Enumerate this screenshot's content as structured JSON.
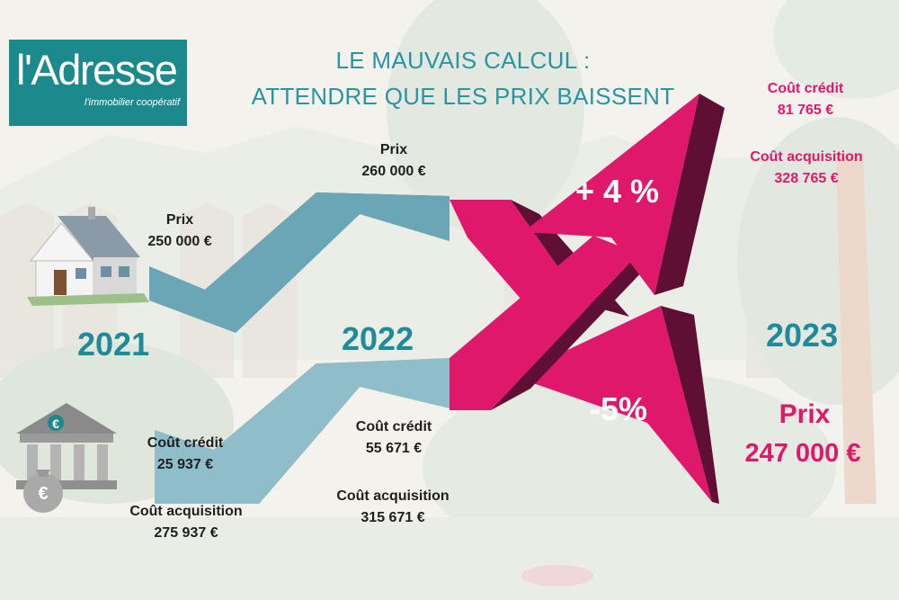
{
  "logo": {
    "brand": "l'Adresse",
    "tagline": "l'immobilier coopératif"
  },
  "title": {
    "line1": "LE MAUVAIS CALCUL :",
    "line2": "ATTENDRE QUE LES PRIX BAISSENT"
  },
  "years": {
    "y2021": "2021",
    "y2022": "2022",
    "y2023": "2023"
  },
  "y2021": {
    "price_label": "Prix",
    "price_value": "250 000 €",
    "credit_label": "Coût crédit",
    "credit_value": "25 937 €",
    "acq_label": "Coût acquisition",
    "acq_value": "275 937 €"
  },
  "y2022": {
    "price_label": "Prix",
    "price_value": "260 000 €",
    "credit_label": "Coût crédit",
    "credit_value": "55 671 €",
    "acq_label": "Coût acquisition",
    "acq_value": "315 671 €"
  },
  "y2023": {
    "up_pct": "+ 4 %",
    "down_pct": "-5%",
    "credit_label": "Coût crédit",
    "credit_value": "81 765 €",
    "acq_label": "Coût acquisition",
    "acq_value": "328 765 €",
    "price_label": "Prix",
    "price_value": "247 000 €"
  },
  "icons": {
    "house": "house-icon",
    "bank": "bank-euro-icon",
    "money_bag": "money-bag-euro-icon"
  },
  "colors": {
    "teal": "#1c8a8c",
    "blue_arrow": "#6aa6b6",
    "pink": "#e0186c",
    "dark_pink": "#5e0f33",
    "year_teal": "#1f8a9a"
  }
}
